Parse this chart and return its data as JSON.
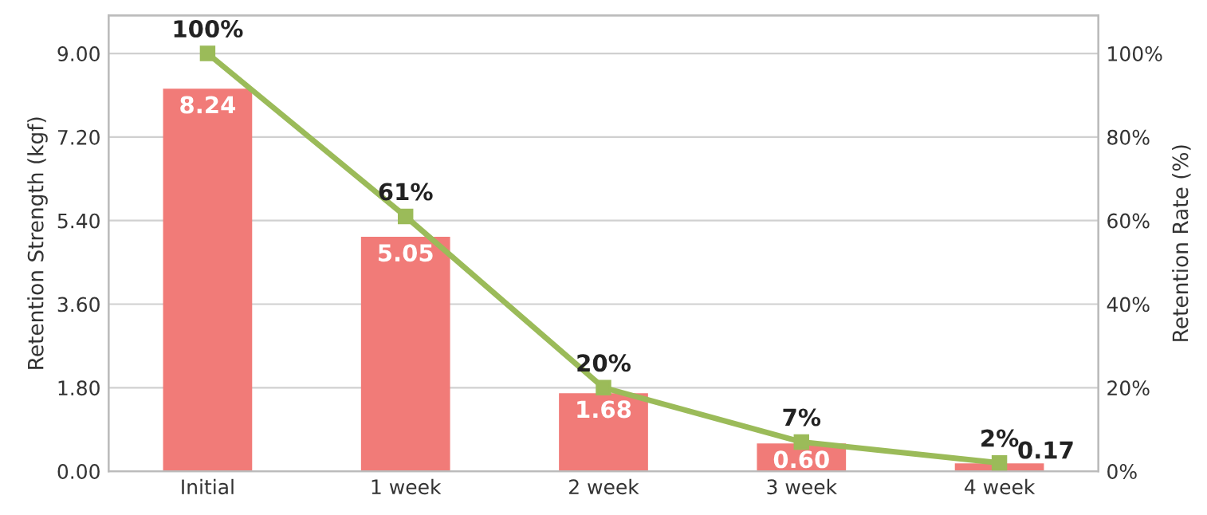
{
  "chart_data": {
    "type": "bar",
    "categories": [
      "Initial",
      "1 week",
      "2 week",
      "3 week",
      "4 week"
    ],
    "ylabel": "Retention Strength (kgf)",
    "y2label": "Retention Rate (%)",
    "series": [
      {
        "color": "#f17b78",
        "values": [
          8.24,
          5.05,
          1.68,
          0.6,
          0.17
        ],
        "value_labels": [
          "8.24",
          "5.05",
          "1.68",
          "0.60",
          "0.17"
        ]
      },
      {
        "type": "line",
        "axis": "y2",
        "color": "#9bbb59",
        "marker": "square",
        "values": [
          100,
          61,
          20,
          7,
          2
        ],
        "value_labels": [
          "100%",
          "61%",
          "20%",
          "7%",
          "2%"
        ]
      }
    ],
    "ylim": [
      0,
      9.82
    ],
    "yticks": [
      {
        "value": 0,
        "label": "0.00"
      },
      {
        "value": 1.8,
        "label": "1.80"
      },
      {
        "value": 3.6,
        "label": "3.60"
      },
      {
        "value": 5.4,
        "label": "5.40"
      },
      {
        "value": 7.2,
        "label": "7.20"
      },
      {
        "value": 9,
        "label": "9.00"
      }
    ],
    "y2lim": [
      0,
      109.1
    ],
    "y2ticks": [
      {
        "value": 0,
        "label": "0%"
      },
      {
        "value": 20,
        "label": "20%"
      },
      {
        "value": 40,
        "label": "40%"
      },
      {
        "value": 60,
        "label": "60%"
      },
      {
        "value": 80,
        "label": "80%"
      },
      {
        "value": 100,
        "label": "100%"
      }
    ],
    "grid": "y"
  }
}
